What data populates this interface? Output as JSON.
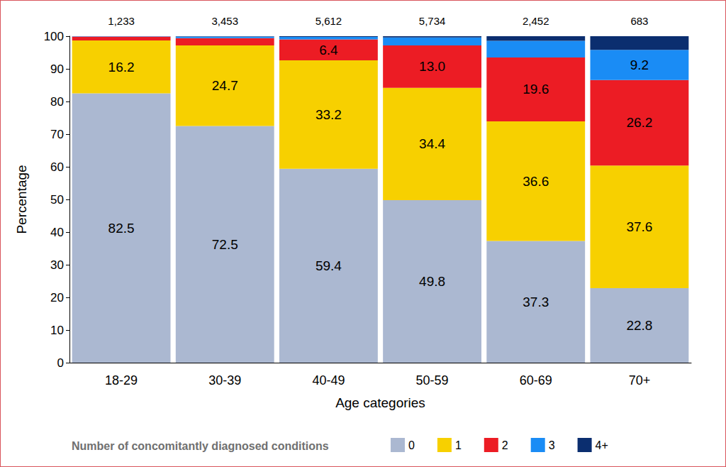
{
  "chart_data": {
    "type": "bar",
    "stacked": true,
    "data_labels": true,
    "grid": false,
    "legend": "bottom",
    "legend_title": "Number of concomitantly diagnosed conditions",
    "x_label": "Age categories",
    "y_label": "Percentage",
    "categories": [
      "18-29",
      "30-39",
      "40-49",
      "50-59",
      "60-69",
      "70+"
    ],
    "counts": [
      1233,
      3453,
      5612,
      5734,
      2452,
      683
    ],
    "count_labels": [
      "1,233",
      "3,453",
      "5,612",
      "5,734",
      "2,452",
      "683"
    ],
    "ylim": [
      0,
      100
    ],
    "yticks": [
      0,
      10,
      20,
      30,
      40,
      50,
      60,
      70,
      80,
      90,
      100
    ],
    "series": [
      {
        "name": "0",
        "color": "#abb8d1",
        "values": [
          82.5,
          72.5,
          59.4,
          49.8,
          37.3,
          22.8
        ],
        "value_labels": [
          "82.5",
          "72.5",
          "59.4",
          "49.8",
          "37.3",
          "22.8"
        ]
      },
      {
        "name": "1",
        "color": "#f7d000",
        "values": [
          16.2,
          24.7,
          33.2,
          34.4,
          36.6,
          37.6
        ],
        "value_labels": [
          "16.2",
          "24.7",
          "33.2",
          "34.4",
          "36.6",
          "37.6"
        ]
      },
      {
        "name": "2",
        "color": "#ec1c24",
        "values": [
          1.2,
          2.2,
          6.4,
          13.0,
          19.6,
          26.2
        ],
        "value_labels": [
          null,
          null,
          "6.4",
          "13.0",
          "19.6",
          "26.2"
        ]
      },
      {
        "name": "3",
        "color": "#1a8cf5",
        "values": [
          0.1,
          0.5,
          0.8,
          2.4,
          5.1,
          9.2
        ],
        "value_labels": [
          null,
          null,
          null,
          null,
          null,
          "9.2"
        ]
      },
      {
        "name": "4+",
        "color": "#0b2e6f",
        "values": [
          0.0,
          0.1,
          0.2,
          0.4,
          1.4,
          4.2
        ],
        "value_labels": [
          null,
          null,
          null,
          null,
          null,
          null
        ]
      }
    ]
  }
}
